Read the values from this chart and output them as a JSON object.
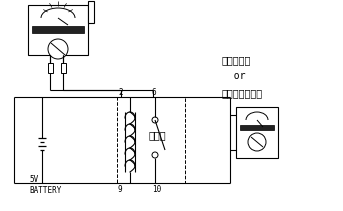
{
  "bg_color": "#ffffff",
  "line_color": "#000000",
  "label_relay": "リレー",
  "label_battery": "5V\nBATTERY",
  "label_2": "2",
  "label_6": "6",
  "label_9": "9",
  "label_10": "10",
  "label_range": "導通レンジ\n  or\n抵抗測定レンジ"
}
